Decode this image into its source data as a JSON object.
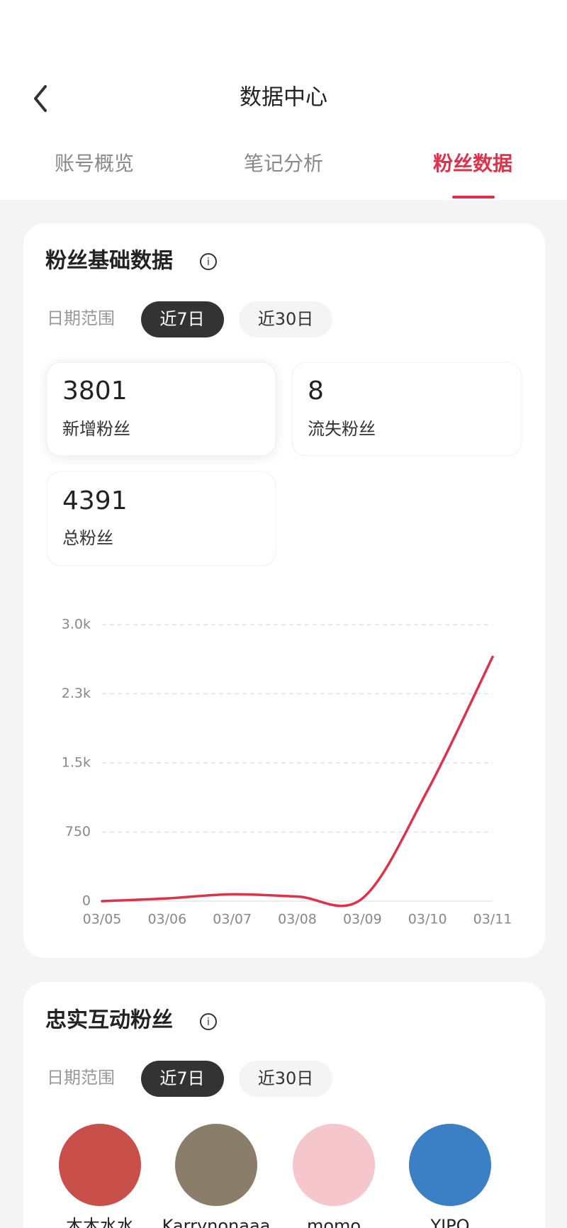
{
  "header": {
    "title": "数据中心"
  },
  "tabs": [
    "账号概览",
    "笔记分析",
    "粉丝数据"
  ],
  "fan_basics": {
    "title": "粉丝基础数据",
    "date_label": "日期范围",
    "ranges": [
      "近7日",
      "近30日"
    ],
    "stats": [
      {
        "value": 3801,
        "label": "新增粉丝"
      },
      {
        "value": 8,
        "label": "流失粉丝"
      },
      {
        "value": 4391,
        "label": "总粉丝"
      }
    ]
  },
  "chart_data": {
    "type": "line",
    "categories": [
      "03/05",
      "03/06",
      "03/07",
      "03/08",
      "03/09",
      "03/10",
      "03/11"
    ],
    "series": [
      {
        "color": "#e0314b",
        "values": [
          0,
          30,
          75,
          50,
          30,
          1200,
          2650
        ]
      }
    ],
    "ylim": [
      0,
      3000
    ],
    "yticks": [
      0,
      750,
      {
        "value": 1500,
        "label": "1.5k"
      },
      {
        "value": 2250,
        "label": "2.3k"
      },
      {
        "value": 3000,
        "label": "3.0k"
      }
    ],
    "grid": true
  },
  "loyal_fans": {
    "title": "忠实互动粉丝",
    "date_label": "日期范围",
    "ranges": [
      "近7日",
      "近30日"
    ],
    "fans": [
      "木木水水",
      "Karrynonaaa",
      "momo",
      "YIPO"
    ]
  }
}
